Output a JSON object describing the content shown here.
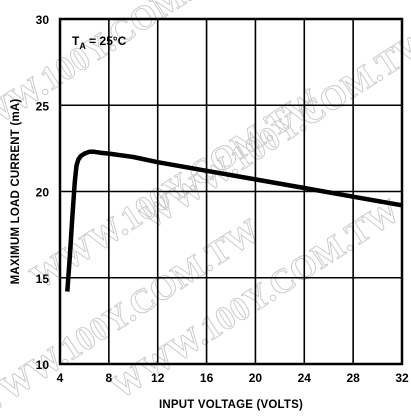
{
  "chart_data": {
    "type": "line",
    "title": "",
    "xlabel": "INPUT VOLTAGE (VOLTS)",
    "ylabel": "MAXIMUM LOAD CURRENT (mA)",
    "xlim": [
      4,
      32
    ],
    "ylim": [
      10,
      30
    ],
    "x_ticks": [
      4,
      8,
      12,
      16,
      20,
      24,
      28,
      32
    ],
    "y_ticks": [
      10,
      15,
      20,
      25,
      30
    ],
    "grid": true,
    "legend": "none",
    "annotation": {
      "prefix": "T",
      "subscript": "A",
      "suffix": " = 25°C"
    },
    "line_color": "#000000",
    "series": [
      {
        "x": [
          4.6,
          4.8,
          5.0,
          5.2,
          5.35,
          5.5,
          5.7,
          6.0,
          6.4,
          6.8,
          7.3,
          8.0,
          10,
          12,
          16,
          20,
          24,
          28,
          32
        ],
        "y": [
          14.2,
          16.2,
          18.4,
          20.5,
          21.5,
          21.85,
          22.05,
          22.2,
          22.3,
          22.3,
          22.25,
          22.2,
          22.0,
          21.7,
          21.2,
          20.7,
          20.2,
          19.7,
          19.2
        ]
      }
    ],
    "watermark": "WWW.100Y.COM.TW"
  }
}
